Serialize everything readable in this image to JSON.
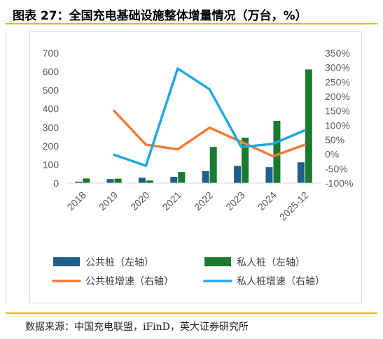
{
  "title": "图表 27：全国充电基础设施整体增量情况（万台，%）",
  "source": "数据来源：中国充电联盟，iFinD，英大证券研究所",
  "chart_data": {
    "type": "bar",
    "categories": [
      "2018",
      "2019",
      "2020",
      "2021",
      "2022",
      "2023",
      "2024",
      "2025-12"
    ],
    "left_axis": {
      "min": 0,
      "max": 700,
      "step": 100,
      "ticks": [
        "0",
        "100",
        "200",
        "300",
        "400",
        "500",
        "600",
        "700"
      ]
    },
    "right_axis": {
      "min": -100,
      "max": 350,
      "step": 50,
      "ticks": [
        "-100%",
        "-50%",
        "0%",
        "50%",
        "100%",
        "150%",
        "200%",
        "250%",
        "300%",
        "350%"
      ]
    },
    "series": [
      {
        "name": "公共桩（左轴）",
        "type": "bar",
        "axis": "left",
        "color": "#1f5f8b",
        "values": [
          8,
          22,
          29,
          34,
          65,
          93,
          86,
          112
        ]
      },
      {
        "name": "私人桩（左轴）",
        "type": "bar",
        "axis": "left",
        "color": "#1a7a2e",
        "values": [
          25,
          24,
          14,
          60,
          195,
          245,
          335,
          612
        ]
      },
      {
        "name": "公共桩增速（右轴）",
        "type": "line",
        "axis": "right",
        "color": "#f07c3a",
        "values": [
          null,
          150,
          33,
          17,
          92,
          43,
          -7,
          33
        ]
      },
      {
        "name": "私人桩增速（右轴）",
        "type": "line",
        "axis": "right",
        "color": "#20a8e0",
        "values": [
          null,
          -2,
          -40,
          297,
          225,
          25,
          36,
          83
        ]
      }
    ],
    "legend_position": "bottom",
    "grid": false
  }
}
